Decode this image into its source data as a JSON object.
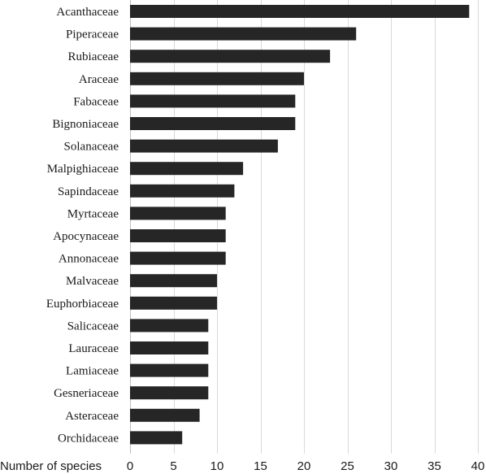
{
  "chart_data": {
    "type": "bar",
    "orientation": "horizontal",
    "title": "",
    "xlabel": "Number of species",
    "ylabel": "",
    "xlim": [
      0,
      40
    ],
    "xticks": [
      0,
      5,
      10,
      15,
      20,
      25,
      30,
      35,
      40
    ],
    "grid": true,
    "bar_color": "#262626",
    "categories": [
      "Acanthaceae",
      "Piperaceae",
      "Rubiaceae",
      "Araceae",
      "Fabaceae",
      "Bignoniaceae",
      "Solanaceae",
      "Malpighiaceae",
      "Sapindaceae",
      "Myrtaceae",
      "Apocynaceae",
      "Annonaceae",
      "Malvaceae",
      "Euphorbiaceae",
      "Salicaceae",
      "Lauraceae",
      "Lamiaceae",
      "Gesneriaceae",
      "Asteraceae",
      "Orchidaceae"
    ],
    "values": [
      39,
      26,
      23,
      20,
      19,
      19,
      17,
      13,
      12,
      11,
      11,
      11,
      10,
      10,
      9,
      9,
      9,
      9,
      8,
      6
    ]
  }
}
